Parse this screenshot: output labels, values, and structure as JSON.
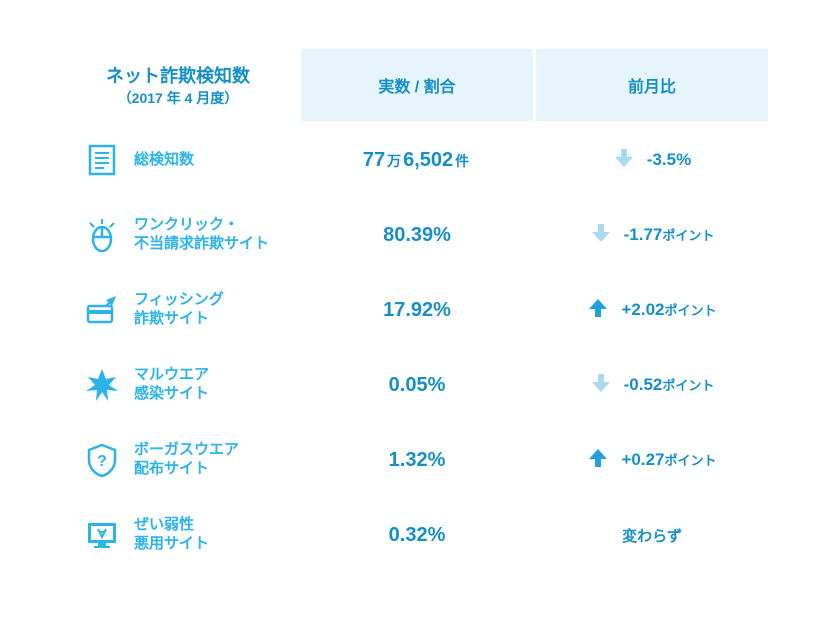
{
  "colors": {
    "primary": "#168fc7",
    "accent": "#2bb3ea",
    "bg_alt": "#e6f4fb",
    "bg_plain": "#f5fbfe",
    "arrow_up": "#1fa1e0",
    "arrow_down": "#a8daf0",
    "background": "#ffffff"
  },
  "header": {
    "title": "ネット詐欺検知数",
    "subtitle": "（2017 年 4 月度）",
    "col_value": "実数 / 割合",
    "col_delta": "前月比"
  },
  "rows": [
    {
      "icon": "document-icon",
      "label": "総検知数",
      "value_parts": [
        {
          "t": "77",
          "cls": "num"
        },
        {
          "t": "万",
          "cls": "unit"
        },
        {
          "t": "6,502",
          "cls": "num"
        },
        {
          "t": "件",
          "cls": "unit"
        }
      ],
      "delta_dir": "down",
      "delta_parts": [
        {
          "t": "-3.5%",
          "cls": "num"
        }
      ],
      "alt": true
    },
    {
      "icon": "mouse-click-icon",
      "label": "ワンクリック・\n不当請求詐欺サイト",
      "value_parts": [
        {
          "t": "80.39%",
          "cls": "num"
        }
      ],
      "delta_dir": "down",
      "delta_parts": [
        {
          "t": "-1.77",
          "cls": "num"
        },
        {
          "t": "ポイント",
          "cls": "unit"
        }
      ],
      "alt": false
    },
    {
      "icon": "phishing-card-icon",
      "label": "フィッシング\n詐欺サイト",
      "value_parts": [
        {
          "t": "17.92%",
          "cls": "num"
        }
      ],
      "delta_dir": "up",
      "delta_parts": [
        {
          "t": "+2.02",
          "cls": "num"
        },
        {
          "t": "ポイント",
          "cls": "unit"
        }
      ],
      "alt": true
    },
    {
      "icon": "malware-burst-icon",
      "label": "マルウエア\n感染サイト",
      "value_parts": [
        {
          "t": "0.05%",
          "cls": "num"
        }
      ],
      "delta_dir": "down",
      "delta_parts": [
        {
          "t": "-0.52",
          "cls": "num"
        },
        {
          "t": "ポイント",
          "cls": "unit"
        }
      ],
      "alt": false
    },
    {
      "icon": "shield-question-icon",
      "label": "ボーガスウエア\n配布サイト",
      "value_parts": [
        {
          "t": "1.32%",
          "cls": "num"
        }
      ],
      "delta_dir": "up",
      "delta_parts": [
        {
          "t": "+0.27",
          "cls": "num"
        },
        {
          "t": "ポイント",
          "cls": "unit"
        }
      ],
      "alt": true
    },
    {
      "icon": "vuln-monitor-icon",
      "label": "ぜい弱性\n悪用サイト",
      "value_parts": [
        {
          "t": "0.32%",
          "cls": "num"
        }
      ],
      "delta_dir": "none",
      "delta_nochange": "変わらず",
      "alt": false
    }
  ]
}
